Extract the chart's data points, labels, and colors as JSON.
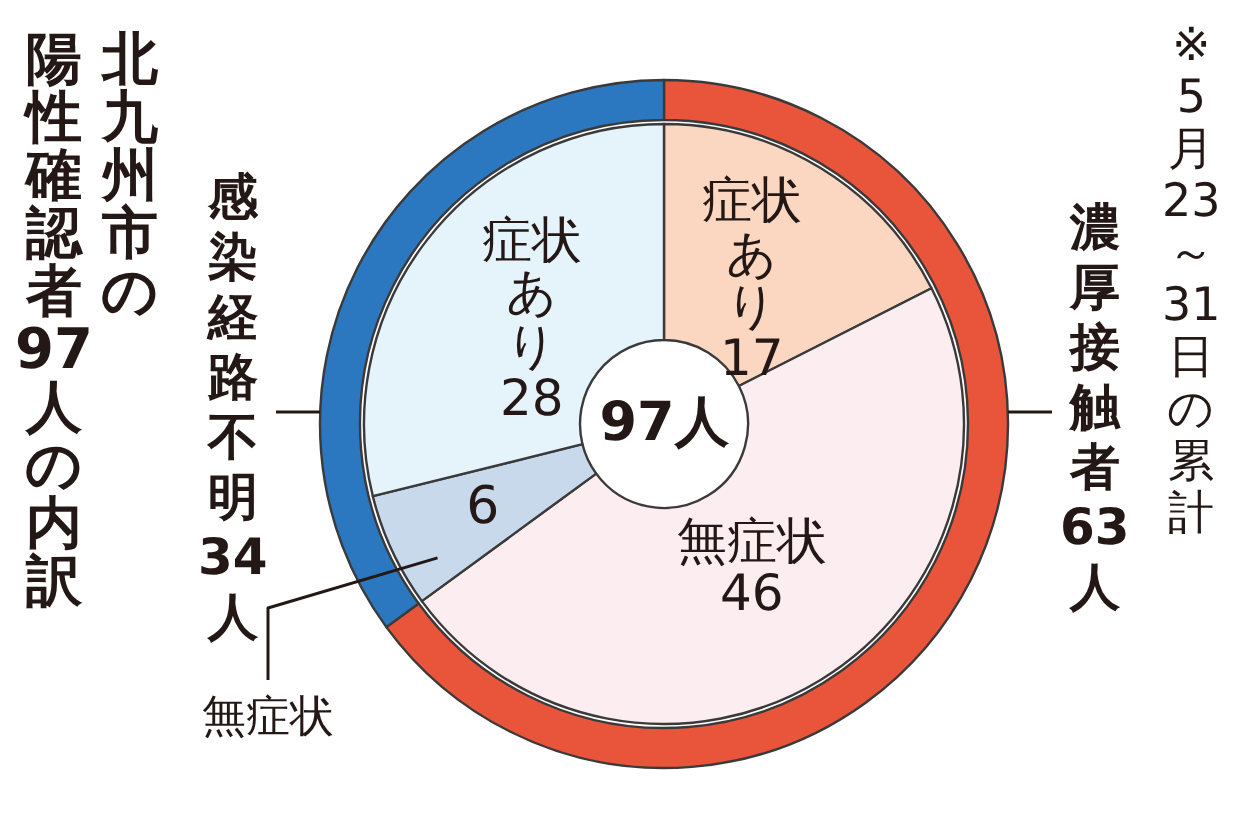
{
  "chart_data": [
    {
      "type": "donut",
      "title": "北九州市の",
      "subtitle": "陽性確認者97人の内訳",
      "categories": [
        "濃厚接触者",
        "感染経路不明"
      ],
      "values": [
        63,
        34
      ],
      "value_labels": [
        "63人",
        "34人"
      ],
      "colors": [
        "#e8553a",
        "#2b78c1"
      ],
      "annotations": [
        "※5月23～31日の累計"
      ]
    },
    {
      "type": "donut",
      "categories": [
        "症状あり",
        "無症状",
        "無症状",
        "症状あり"
      ],
      "values": [
        17,
        46,
        6,
        28
      ],
      "data_labels": true,
      "colors": [
        "#fbd6c0",
        "#fcedf0",
        "#c9d9ec",
        "#e5f3fb"
      ],
      "annotations": [
        "97人"
      ]
    }
  ]
}
